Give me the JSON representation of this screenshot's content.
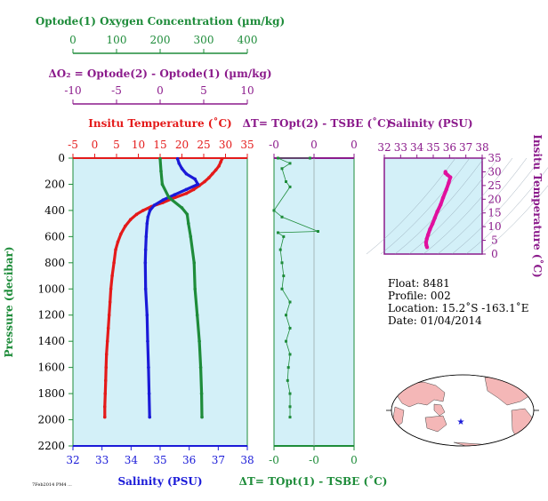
{
  "oxygen_axis": {
    "title": "Optode(1) Oxygen Concentration (µm/kg)",
    "range": [
      0,
      400
    ],
    "ticks": [
      "0",
      "100",
      "200",
      "300",
      "400"
    ],
    "color": "#1e8c3a"
  },
  "delta_o2_axis": {
    "title": "ΔO₂ = Optode(2) - Optode(1)    (µm/kg)",
    "range": [
      -10,
      10
    ],
    "ticks": [
      "-10",
      "-5",
      "0",
      "5",
      "10"
    ],
    "color": "#8b1a8b"
  },
  "chart_data": [
    {
      "type": "line",
      "name": "profile",
      "ylabel": "Pressure (decibar)",
      "ylim": [
        2200,
        0
      ],
      "yticks": [
        "0",
        "200",
        "400",
        "600",
        "800",
        "1000",
        "1200",
        "1400",
        "1600",
        "1800",
        "2000",
        "2200"
      ],
      "top_axis": {
        "title": "Insitu Temperature (˚C)",
        "range": [
          -5,
          35
        ],
        "ticks": [
          "-5",
          "0",
          "5",
          "10",
          "15",
          "20",
          "25",
          "30",
          "35"
        ],
        "color": "#e41a1a"
      },
      "bottom_axis": {
        "title": "Salinity (PSU)",
        "range": [
          32,
          38
        ],
        "ticks": [
          "32",
          "33",
          "34",
          "35",
          "36",
          "37",
          "38"
        ],
        "color": "#1a1ad8"
      },
      "series": [
        {
          "axis": "temperature",
          "color": "#e41a1a",
          "points": [
            [
              29.2,
              5
            ],
            [
              28.9,
              30
            ],
            [
              28.5,
              60
            ],
            [
              27.8,
              90
            ],
            [
              27.0,
              120
            ],
            [
              26.2,
              150
            ],
            [
              25.2,
              180
            ],
            [
              24.0,
              210
            ],
            [
              22.7,
              240
            ],
            [
              21.0,
              270
            ],
            [
              18.5,
              300
            ],
            [
              15.6,
              340
            ],
            [
              13.0,
              370
            ],
            [
              11.1,
              400
            ],
            [
              9.6,
              430
            ],
            [
              8.2,
              470
            ],
            [
              7.0,
              520
            ],
            [
              6.0,
              580
            ],
            [
              5.3,
              640
            ],
            [
              4.8,
              700
            ],
            [
              4.4,
              800
            ],
            [
              4.0,
              900
            ],
            [
              3.7,
              1000
            ],
            [
              3.5,
              1100
            ],
            [
              3.3,
              1200
            ],
            [
              3.1,
              1300
            ],
            [
              2.9,
              1400
            ],
            [
              2.7,
              1500
            ],
            [
              2.6,
              1600
            ],
            [
              2.5,
              1700
            ],
            [
              2.4,
              1800
            ],
            [
              2.3,
              1900
            ],
            [
              2.3,
              1980
            ]
          ]
        },
        {
          "axis": "salinity",
          "color": "#1a1ad8",
          "points": [
            [
              35.6,
              5
            ],
            [
              35.65,
              40
            ],
            [
              35.75,
              80
            ],
            [
              35.9,
              120
            ],
            [
              36.2,
              160
            ],
            [
              36.3,
              200
            ],
            [
              35.9,
              240
            ],
            [
              35.5,
              280
            ],
            [
              35.1,
              320
            ],
            [
              34.8,
              360
            ],
            [
              34.65,
              400
            ],
            [
              34.58,
              450
            ],
            [
              34.55,
              500
            ],
            [
              34.52,
              600
            ],
            [
              34.5,
              700
            ],
            [
              34.49,
              800
            ],
            [
              34.5,
              1000
            ],
            [
              34.55,
              1200
            ],
            [
              34.57,
              1400
            ],
            [
              34.6,
              1600
            ],
            [
              34.62,
              1800
            ],
            [
              34.64,
              1980
            ]
          ]
        },
        {
          "axis": "oxygen",
          "color": "#1e8c3a",
          "points": [
            [
              200,
              5
            ],
            [
              202,
              100
            ],
            [
              205,
              200
            ],
            [
              220,
              300
            ],
            [
              250,
              380
            ],
            [
              262,
              430
            ],
            [
              265,
              500
            ],
            [
              270,
              600
            ],
            [
              278,
              800
            ],
            [
              280,
              1000
            ],
            [
              285,
              1200
            ],
            [
              290,
              1400
            ],
            [
              293,
              1600
            ],
            [
              295,
              1800
            ],
            [
              296,
              1980
            ]
          ]
        }
      ]
    },
    {
      "type": "scatter",
      "name": "delta-t",
      "top_label": "ΔT= TOpt(2) - TSBE (˚C)",
      "bottom_label": "ΔT= TOpt(1) - TSBE (˚C)",
      "xlim": [
        -0.5,
        0.5
      ],
      "xticks": [
        "-0",
        "0",
        "0"
      ],
      "bottom_xticks": [
        "-0",
        "-0",
        "0"
      ],
      "top_color": "#8b1a8b",
      "bottom_color": "#1e8c3a",
      "series": [
        {
          "color": "#1e8c3a",
          "points": [
            [
              -0.05,
              0
            ],
            [
              -0.45,
              0
            ],
            [
              -0.3,
              40
            ],
            [
              -0.4,
              80
            ],
            [
              -0.35,
              180
            ],
            [
              -0.3,
              220
            ],
            [
              -0.5,
              400
            ],
            [
              -0.4,
              450
            ],
            [
              0.05,
              560
            ],
            [
              -0.45,
              570
            ],
            [
              -0.38,
              600
            ],
            [
              -0.42,
              700
            ],
            [
              -0.4,
              800
            ],
            [
              -0.38,
              900
            ],
            [
              -0.4,
              1000
            ],
            [
              -0.3,
              1100
            ],
            [
              -0.35,
              1200
            ],
            [
              -0.3,
              1300
            ],
            [
              -0.35,
              1400
            ],
            [
              -0.3,
              1500
            ],
            [
              -0.32,
              1600
            ],
            [
              -0.33,
              1700
            ],
            [
              -0.3,
              1800
            ],
            [
              -0.3,
              1900
            ],
            [
              -0.3,
              1980
            ]
          ]
        }
      ]
    },
    {
      "type": "line",
      "name": "ts-diagram",
      "xlabel": "Salinity (PSU)",
      "ylabel": "Insitu Temperature (˚C)",
      "xlim": [
        32,
        38
      ],
      "ylim": [
        0,
        35
      ],
      "xticks": [
        "32",
        "33",
        "34",
        "35",
        "36",
        "37",
        "38"
      ],
      "yticks": [
        "0",
        "5",
        "10",
        "15",
        "20",
        "25",
        "30",
        "35"
      ],
      "color": "#e0109e",
      "points": [
        [
          34.62,
          2.5
        ],
        [
          34.58,
          3.2
        ],
        [
          34.56,
          4.2
        ],
        [
          34.6,
          5.5
        ],
        [
          34.68,
          7.0
        ],
        [
          34.8,
          9.0
        ],
        [
          34.95,
          11.0
        ],
        [
          35.1,
          13.2
        ],
        [
          35.25,
          15.5
        ],
        [
          35.45,
          18.0
        ],
        [
          35.6,
          20.5
        ],
        [
          35.8,
          23.5
        ],
        [
          35.95,
          26.0
        ],
        [
          36.05,
          28.0
        ],
        [
          35.85,
          29.0
        ],
        [
          35.75,
          29.5
        ],
        [
          35.75,
          30.0
        ]
      ]
    }
  ],
  "info": {
    "float": "Float:  8481",
    "profile": "Profile:  002",
    "location": "Location:  15.2˚S  -163.1˚E",
    "date": "Date:  01/04/2014"
  },
  "map": {
    "marker_color": "#1a1ad8",
    "land_color": "#f4b7b7",
    "ocean_color": "#ffffff"
  },
  "footnote": "7Feb2014 PM4 ..."
}
